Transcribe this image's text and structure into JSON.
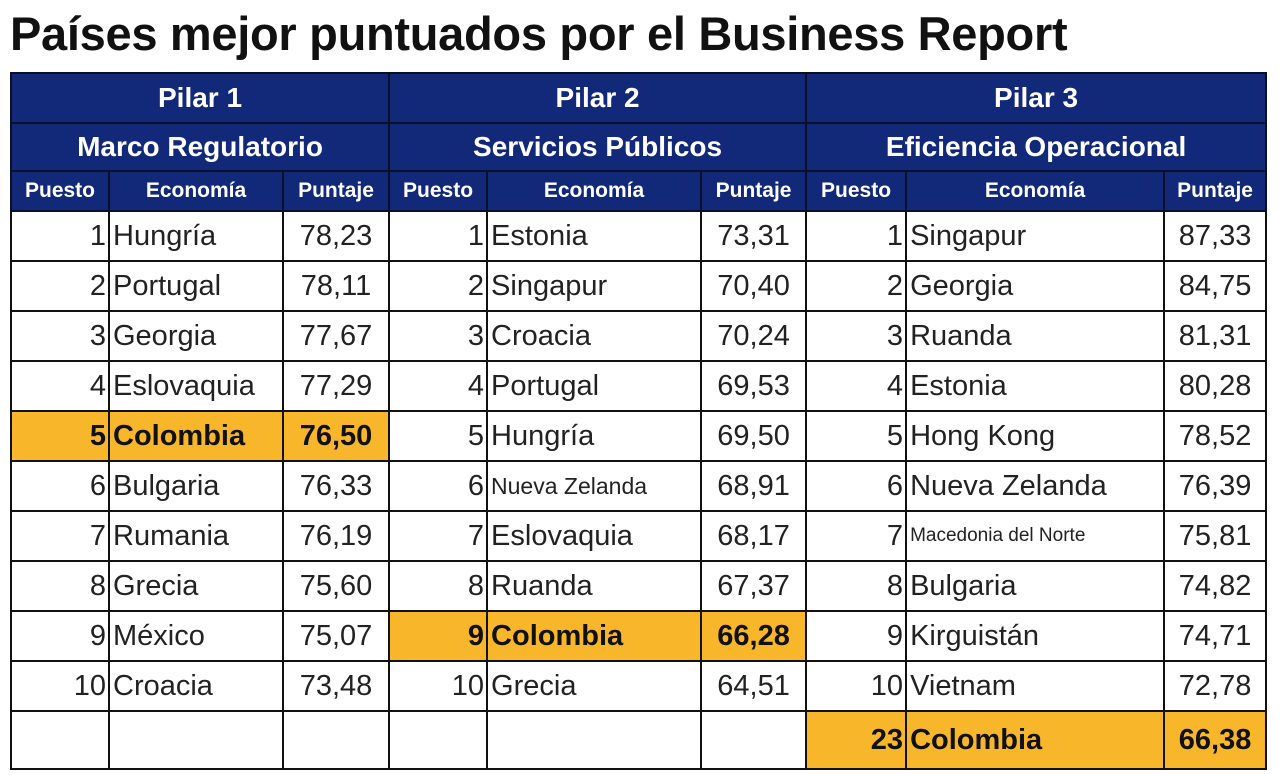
{
  "title": "Países mejor puntuados por el Business Report",
  "colors": {
    "header": "#12297a",
    "highlight": "#f8b62b"
  },
  "highlight_economy": "Colombia",
  "column_headers": [
    "Puesto",
    "Economía",
    "Puntaje"
  ],
  "pillars": [
    {
      "name": "Pilar 1",
      "subtitle": "Marco Regulatorio",
      "rows": [
        {
          "rank": "1",
          "economy": "Hungría",
          "score": "78,23"
        },
        {
          "rank": "2",
          "economy": "Portugal",
          "score": "78,11"
        },
        {
          "rank": "3",
          "economy": "Georgia",
          "score": "77,67"
        },
        {
          "rank": "4",
          "economy": "Eslovaquia",
          "score": "77,29"
        },
        {
          "rank": "5",
          "economy": "Colombia",
          "score": "76,50"
        },
        {
          "rank": "6",
          "economy": "Bulgaria",
          "score": "76,33"
        },
        {
          "rank": "7",
          "economy": "Rumania",
          "score": "76,19"
        },
        {
          "rank": "8",
          "economy": "Grecia",
          "score": "75,60"
        },
        {
          "rank": "9",
          "economy": "México",
          "score": "75,07"
        },
        {
          "rank": "10",
          "economy": "Croacia",
          "score": "73,48"
        },
        {
          "rank": "",
          "economy": "",
          "score": ""
        }
      ]
    },
    {
      "name": "Pilar 2",
      "subtitle": "Servicios Públicos",
      "rows": [
        {
          "rank": "1",
          "economy": "Estonia",
          "score": "73,31"
        },
        {
          "rank": "2",
          "economy": "Singapur",
          "score": "70,40"
        },
        {
          "rank": "3",
          "economy": "Croacia",
          "score": "70,24"
        },
        {
          "rank": "4",
          "economy": "Portugal",
          "score": "69,53"
        },
        {
          "rank": "5",
          "economy": "Hungría",
          "score": "69,50"
        },
        {
          "rank": "6",
          "economy": "Nueva Zelanda",
          "score": "68,91"
        },
        {
          "rank": "7",
          "economy": "Eslovaquia",
          "score": "68,17"
        },
        {
          "rank": "8",
          "economy": "Ruanda",
          "score": "67,37"
        },
        {
          "rank": "9",
          "economy": "Colombia",
          "score": "66,28"
        },
        {
          "rank": "10",
          "economy": "Grecia",
          "score": "64,51"
        },
        {
          "rank": "",
          "economy": "",
          "score": ""
        }
      ]
    },
    {
      "name": "Pilar 3",
      "subtitle": "Eficiencia Operacional",
      "rows": [
        {
          "rank": "1",
          "economy": "Singapur",
          "score": "87,33"
        },
        {
          "rank": "2",
          "economy": "Georgia",
          "score": "84,75"
        },
        {
          "rank": "3",
          "economy": "Ruanda",
          "score": "81,31"
        },
        {
          "rank": "4",
          "economy": "Estonia",
          "score": "80,28"
        },
        {
          "rank": "5",
          "economy": "Hong Kong",
          "score": "78,52"
        },
        {
          "rank": "6",
          "economy": "Nueva Zelanda",
          "score": "76,39"
        },
        {
          "rank": "7",
          "economy": "Macedonia del Norte",
          "score": "75,81"
        },
        {
          "rank": "8",
          "economy": "Bulgaria",
          "score": "74,82"
        },
        {
          "rank": "9",
          "economy": "Kirguistán",
          "score": "74,71"
        },
        {
          "rank": "10",
          "economy": "Vietnam",
          "score": "72,78"
        },
        {
          "rank": "23",
          "economy": "Colombia",
          "score": "66,38"
        }
      ]
    }
  ]
}
